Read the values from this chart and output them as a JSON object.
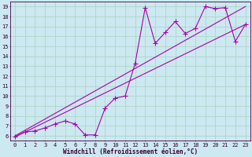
{
  "background_color": "#cce8f0",
  "grid_color": "#b0d4c8",
  "line_color": "#aa00aa",
  "xlabel": "Windchill (Refroidissement éolien,°C)",
  "xlabel_fontsize": 5.5,
  "xlim": [
    -0.5,
    23.5
  ],
  "ylim": [
    5.5,
    19.5
  ],
  "xticks": [
    0,
    1,
    2,
    3,
    4,
    5,
    6,
    7,
    8,
    9,
    10,
    11,
    12,
    13,
    14,
    15,
    16,
    17,
    18,
    19,
    20,
    21,
    22,
    23
  ],
  "yticks": [
    6,
    7,
    8,
    9,
    10,
    11,
    12,
    13,
    14,
    15,
    16,
    17,
    18,
    19
  ],
  "tick_fontsize": 5,
  "line1_x": [
    0,
    1,
    2,
    3,
    4,
    5,
    6,
    7,
    8,
    9,
    10,
    11,
    12,
    13,
    14,
    15,
    16,
    17,
    18,
    19,
    20,
    21,
    22,
    23
  ],
  "line1_y": [
    5.9,
    6.4,
    6.5,
    6.8,
    7.2,
    7.5,
    7.2,
    6.1,
    6.1,
    8.8,
    9.8,
    10.0,
    13.3,
    18.9,
    15.3,
    16.4,
    17.5,
    16.3,
    16.8,
    19.0,
    18.8,
    18.9,
    15.5,
    17.2
  ],
  "line2_x": [
    0,
    23
  ],
  "line2_y": [
    6.0,
    19.0
  ],
  "line3_x": [
    0,
    23
  ],
  "line3_y": [
    5.9,
    17.2
  ],
  "marker": "+",
  "marker_size": 4.0,
  "linewidth": 0.8
}
